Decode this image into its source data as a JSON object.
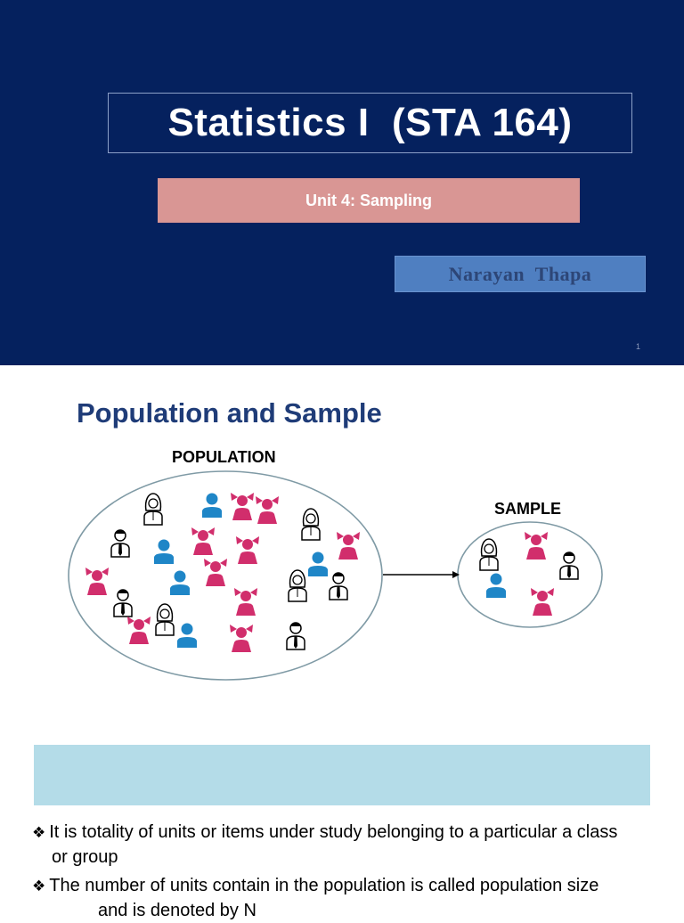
{
  "slide1": {
    "title": "Statistics I  (STA 164)",
    "unit": "Unit 4: Sampling",
    "author": "Narayan  Thapa",
    "page_number": "1"
  },
  "slide2": {
    "title": "Population and Sample",
    "diagram": {
      "population_label": "POPULATION",
      "sample_label": "SAMPLE",
      "icons": [
        "female-outline-icon",
        "female-pink-icon",
        "male-blue-icon",
        "male-outline-icon",
        "arrow-icon"
      ]
    },
    "bullets": [
      {
        "line1": "It is totality of units or items under study belonging to a particular a class",
        "line2": "or group"
      },
      {
        "line1": "The number of units contain in the population is called population size",
        "line2": "and is denoted by N"
      }
    ]
  },
  "colors": {
    "slide1_background": "#05215e",
    "unit_box": "#d99694",
    "author_box": "#4f7fc1",
    "slide2_title": "#1f3c78",
    "pink_person": "#d12e6c",
    "blue_person": "#1f86c7",
    "definition_box": "#b4dce8"
  }
}
